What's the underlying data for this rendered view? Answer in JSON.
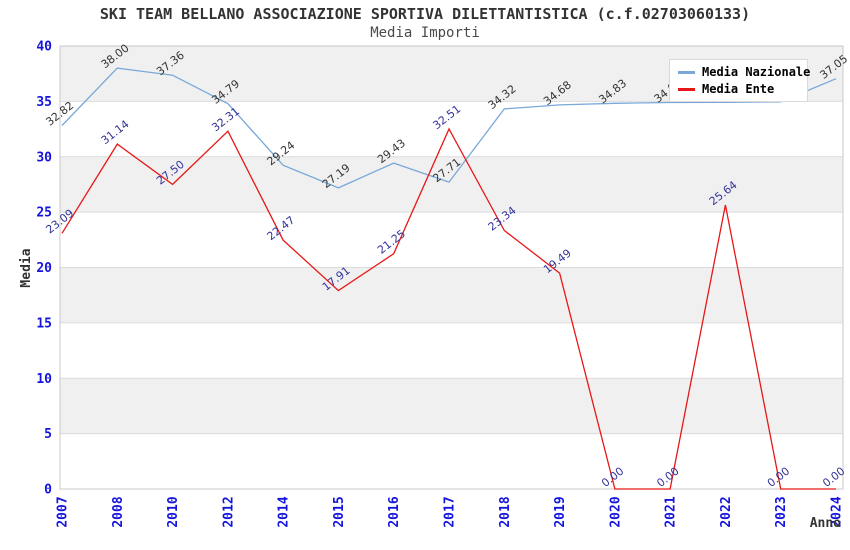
{
  "header": {
    "title": "SKI TEAM BELLANO ASSOCIAZIONE SPORTIVA DILETTANTISTICA (c.f.02703060133)",
    "subtitle": "Media Importi"
  },
  "chart_data": {
    "type": "line",
    "title": "SKI TEAM BELLANO ASSOCIAZIONE SPORTIVA DILETTANTISTICA (c.f.02703060133)",
    "subtitle": "Media Importi",
    "xlabel": "Anno",
    "ylabel": "Media",
    "ylim": [
      0,
      40
    ],
    "yticks": [
      0,
      5,
      10,
      15,
      20,
      25,
      30,
      35,
      40
    ],
    "grid": "horizontal-bands",
    "legend_position": "top-right",
    "band_color": "#f0f0f0",
    "gridline_color": "#dcdcdc",
    "border_color": "#c8c8c8",
    "tick_color": "#1414dd",
    "axis_title_color": "#333333",
    "categories": [
      "2007",
      "2008",
      "2010",
      "2012",
      "2014",
      "2015",
      "2016",
      "2017",
      "2018",
      "2019",
      "2020",
      "2021",
      "2022",
      "2023",
      "2024"
    ],
    "series": [
      {
        "name": "Media Nazionale",
        "color": "#79a8d9",
        "label_color": "#333333",
        "values": [
          32.82,
          38.0,
          37.36,
          34.79,
          29.24,
          27.19,
          29.43,
          27.71,
          34.32,
          34.68,
          34.83,
          34.9,
          34.92,
          34.95,
          37.05
        ],
        "labels": [
          "32.82",
          "38.00",
          "37.36",
          "34.79",
          "29.24",
          "27.19",
          "29.43",
          "27.71",
          "34.32",
          "34.68",
          "34.83",
          "34.90",
          "34.92",
          "34.95",
          "37.05"
        ]
      },
      {
        "name": "Media Ente",
        "color": "#e81717",
        "label_color": "#333399",
        "values": [
          23.09,
          31.14,
          27.5,
          32.31,
          22.47,
          17.91,
          21.25,
          32.51,
          23.34,
          19.49,
          0.0,
          0.0,
          25.64,
          0.0,
          0.0
        ],
        "labels": [
          "23.09",
          "31.14",
          "27.50",
          "32.31",
          "22.47",
          "17.91",
          "21.25",
          "32.51",
          "23.34",
          "19.49",
          "0.00",
          "0.00",
          "25.64",
          "0.00",
          "0.00"
        ]
      }
    ]
  }
}
